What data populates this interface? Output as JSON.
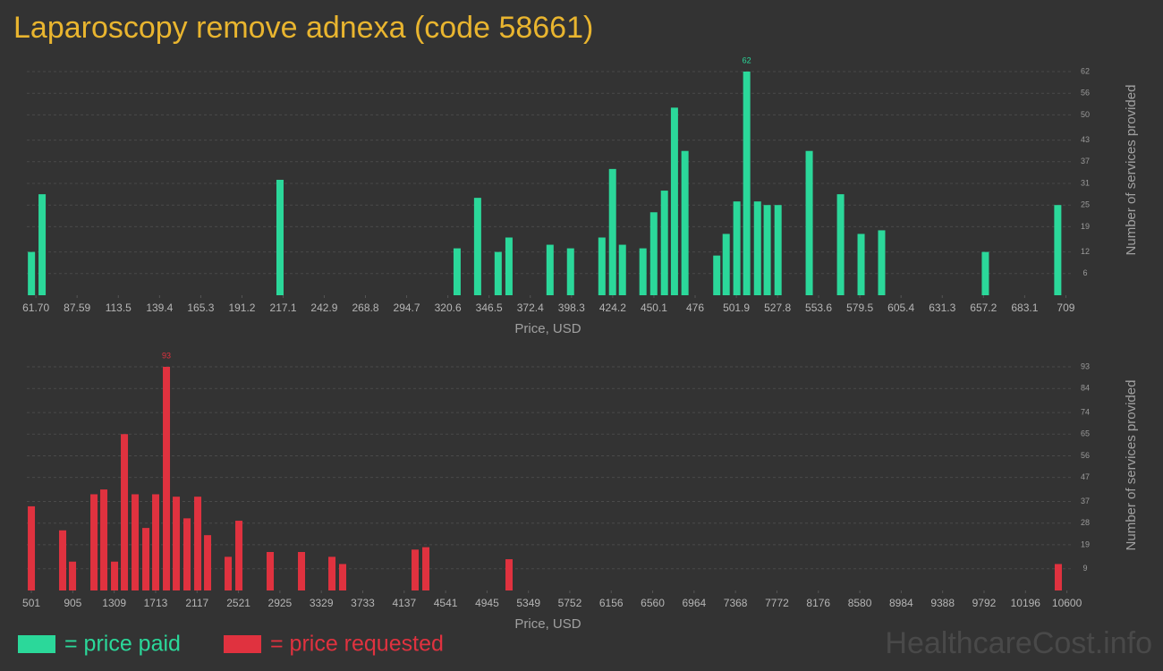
{
  "title": "Laparoscopy remove adnexa (code 58661)",
  "watermark": "HealthcareCost.info",
  "chart_data": [
    {
      "type": "bar",
      "x_label": "Price, USD",
      "y_label": "Number of services provided",
      "grid": true,
      "label_max": true,
      "x": [
        58.9,
        65.6,
        215.1,
        326.4,
        339.3,
        352.2,
        359.0,
        384.8,
        397.7,
        417.4,
        424.1,
        430.3,
        443.2,
        450.0,
        456.7,
        463.0,
        469.6,
        489.6,
        495.5,
        502.2,
        508.4,
        515.2,
        521.3,
        528.1,
        547.7,
        567.4,
        580.3,
        593.2,
        658.4,
        703.9
      ],
      "series": [
        {
          "name": "= price paid",
          "color": "#2bd89a",
          "values": [
            12,
            28,
            32,
            13,
            27,
            12,
            16,
            14,
            13,
            16,
            35,
            14,
            13,
            23,
            29,
            52,
            40,
            11,
            17,
            26,
            62,
            26,
            25,
            25,
            40,
            28,
            17,
            18,
            12,
            25
          ]
        }
      ],
      "xlim": [
        56,
        711
      ],
      "xticks": [
        {
          "value": 61.7,
          "label": "61.70"
        },
        87.59,
        113.5,
        139.4,
        165.3,
        191.2,
        217.1,
        242.9,
        268.8,
        294.7,
        320.6,
        346.5,
        372.4,
        398.3,
        424.2,
        450.1,
        476,
        501.9,
        527.8,
        553.6,
        579.5,
        605.4,
        631.3,
        657.2,
        683.1,
        709
      ],
      "ylim": [
        0,
        62
      ],
      "yticks": [
        6,
        12,
        19,
        25,
        31,
        37,
        43,
        50,
        56,
        62
      ]
    },
    {
      "type": "bar",
      "x_label": "Price, USD",
      "y_label": "Number of services provided",
      "grid": true,
      "label_max": true,
      "x": [
        501,
        806.3,
        902.3,
        1111.7,
        1207.6,
        1312.3,
        1408.3,
        1513.0,
        1617.7,
        1713.6,
        1818.3,
        1914.3,
        2019.0,
        2123.7,
        2219.6,
        2420.3,
        2525.0,
        2830.3,
        3135.6,
        3432.3,
        3536.9,
        4243.6,
        4348.3,
        5159.6,
        10516
      ],
      "series": [
        {
          "name": "= price requested",
          "color": "#e0323f",
          "values": [
            35,
            25,
            12,
            40,
            42,
            12,
            65,
            40,
            26,
            40,
            93,
            39,
            30,
            39,
            23,
            14,
            29,
            16,
            16,
            14,
            11,
            17,
            18,
            13,
            11
          ]
        }
      ],
      "xlim": [
        457,
        10621
      ],
      "xticks": [
        501,
        905,
        1309,
        1713,
        2117,
        2521,
        2925,
        3329,
        3733,
        4137,
        4541,
        4945,
        5349,
        5752,
        6156,
        6560,
        6964,
        7368,
        7772,
        8176,
        8580,
        8984,
        9388,
        9792,
        10196,
        10600
      ],
      "ylim": [
        0,
        93
      ],
      "yticks": [
        9,
        19,
        28,
        37,
        47,
        56,
        65,
        74,
        84,
        93
      ]
    }
  ]
}
